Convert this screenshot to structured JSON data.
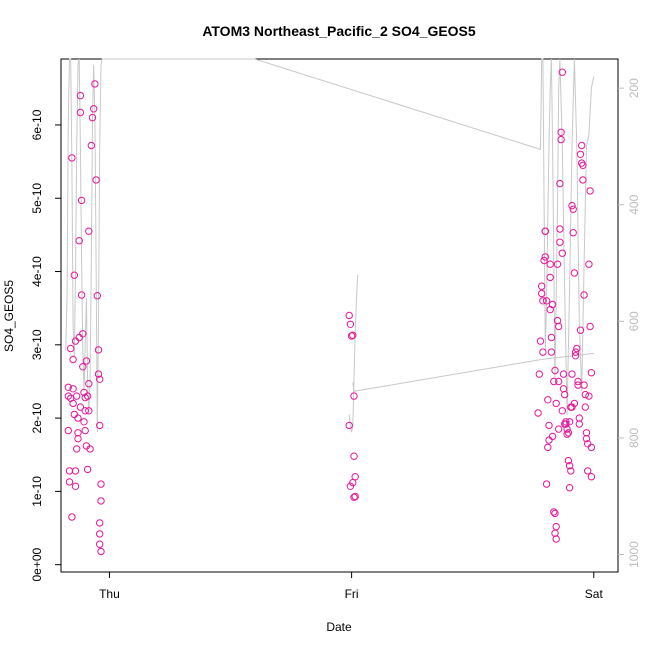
{
  "chart_data": {
    "type": "scatter",
    "title": "ATOM3 Northeast_Pacific_2 SO4_GEOS5",
    "xlabel": "Date",
    "ylabel": "SO4_GEOS5",
    "x_ticks": [
      {
        "label": "Thu",
        "value": 0
      },
      {
        "label": "Fri",
        "value": 1
      },
      {
        "label": "Sat",
        "value": 2
      }
    ],
    "y_ticks": [
      {
        "label": "0e+00",
        "value": 0
      },
      {
        "label": "1e-10",
        "value": 1e-10
      },
      {
        "label": "2e-10",
        "value": 2e-10
      },
      {
        "label": "3e-10",
        "value": 3e-10
      },
      {
        "label": "4e-10",
        "value": 4e-10
      },
      {
        "label": "5e-10",
        "value": 5e-10
      },
      {
        "label": "6e-10",
        "value": 6e-10
      }
    ],
    "right_axis": {
      "reversed": true,
      "ticks": [
        {
          "label": "200",
          "value": 200
        },
        {
          "label": "400",
          "value": 400
        },
        {
          "label": "600",
          "value": 600
        },
        {
          "label": "800",
          "value": 800
        },
        {
          "label": "1000",
          "value": 1000
        }
      ],
      "color": "#bdbdbd"
    },
    "xlim": [
      -0.2,
      2.1
    ],
    "ylim": [
      -1e-11,
      6.9e-10
    ],
    "right_ylim": [
      1030,
      150
    ],
    "point_color": "#e6179c",
    "line_color": "#c8c8c8",
    "series": [
      {
        "kind": "points",
        "points": [
          [
            -0.17,
            2.42e-10
          ],
          [
            -0.17,
            2.3e-10
          ],
          [
            -0.17,
            1.83e-10
          ],
          [
            -0.165,
            1.28e-10
          ],
          [
            -0.165,
            1.13e-10
          ],
          [
            -0.16,
            2.27e-10
          ],
          [
            -0.155,
            6.5e-11
          ],
          [
            -0.155,
            5.55e-10
          ],
          [
            -0.15,
            2.8e-10
          ],
          [
            -0.15,
            2.4e-10
          ],
          [
            -0.145,
            3.95e-10
          ],
          [
            -0.145,
            2.05e-10
          ],
          [
            -0.14,
            1.28e-10
          ],
          [
            -0.14,
            1.07e-10
          ],
          [
            -0.135,
            2.3e-10
          ],
          [
            -0.13,
            1.8e-10
          ],
          [
            -0.13,
            1.72e-10
          ],
          [
            -0.125,
            4.42e-10
          ],
          [
            -0.125,
            3.1e-10
          ],
          [
            -0.12,
            6.4e-10
          ],
          [
            -0.12,
            6.17e-10
          ],
          [
            -0.115,
            4.97e-10
          ],
          [
            -0.115,
            3.68e-10
          ],
          [
            -0.11,
            3.15e-10
          ],
          [
            -0.11,
            2.7e-10
          ],
          [
            -0.105,
            2.35e-10
          ],
          [
            -0.1,
            2.28e-10
          ],
          [
            -0.1,
            1.83e-10
          ],
          [
            -0.095,
            2.78e-10
          ],
          [
            -0.095,
            1.62e-10
          ],
          [
            -0.09,
            1.3e-10
          ],
          [
            -0.09,
            2.3e-10
          ],
          [
            -0.085,
            4.55e-10
          ],
          [
            -0.085,
            2.47e-10
          ],
          [
            -0.08,
            1.58e-10
          ],
          [
            -0.075,
            5.72e-10
          ],
          [
            -0.07,
            6.1e-10
          ],
          [
            -0.065,
            6.22e-10
          ],
          [
            -0.06,
            6.56e-10
          ],
          [
            -0.055,
            5.25e-10
          ],
          [
            -0.05,
            3.67e-10
          ],
          [
            -0.045,
            2.93e-10
          ],
          [
            -0.045,
            2.6e-10
          ],
          [
            -0.04,
            1.9e-10
          ],
          [
            -0.04,
            2.53e-10
          ],
          [
            -0.035,
            1.1e-10
          ],
          [
            -0.035,
            8.7e-11
          ],
          [
            -0.04,
            5.7e-11
          ],
          [
            -0.04,
            4.2e-11
          ],
          [
            -0.04,
            2.8e-11
          ],
          [
            -0.035,
            1.8e-11
          ],
          [
            -0.16,
            2.95e-10
          ],
          [
            -0.14,
            3.05e-10
          ],
          [
            -0.15,
            2.2e-10
          ],
          [
            -0.105,
            1.95e-10
          ],
          [
            -0.1,
            2.1e-10
          ],
          [
            -0.085,
            2.1e-10
          ],
          [
            -0.13,
            2e-10
          ],
          [
            -0.135,
            1.58e-10
          ],
          [
            -0.12,
            2.15e-10
          ],
          [
            0.99,
            3.4e-10
          ],
          [
            0.995,
            3.28e-10
          ],
          [
            1.0,
            3.12e-10
          ],
          [
            1.005,
            3.13e-10
          ],
          [
            0.99,
            1.9e-10
          ],
          [
            1.01,
            2.3e-10
          ],
          [
            0.995,
            1.07e-10
          ],
          [
            1.005,
            1.12e-10
          ],
          [
            1.015,
            1.2e-10
          ],
          [
            1.01,
            1.48e-10
          ],
          [
            1.01,
            9.2e-11
          ],
          [
            1.015,
            9.3e-11
          ],
          [
            1.77,
            2.07e-10
          ],
          [
            1.775,
            2.6e-10
          ],
          [
            1.78,
            3.05e-10
          ],
          [
            1.785,
            3.8e-10
          ],
          [
            1.785,
            3.7e-10
          ],
          [
            1.79,
            3.6e-10
          ],
          [
            1.79,
            2.9e-10
          ],
          [
            1.795,
            4.15e-10
          ],
          [
            1.8,
            4.55e-10
          ],
          [
            1.8,
            4.2e-10
          ],
          [
            1.8,
            4.55e-10
          ],
          [
            1.805,
            3.6e-10
          ],
          [
            1.805,
            1.1e-10
          ],
          [
            1.81,
            2.25e-10
          ],
          [
            1.81,
            1.6e-10
          ],
          [
            1.815,
            1.7e-10
          ],
          [
            1.815,
            1.9e-10
          ],
          [
            1.82,
            4.1e-10
          ],
          [
            1.82,
            3.92e-10
          ],
          [
            1.82,
            3.48e-10
          ],
          [
            1.825,
            3.1e-10
          ],
          [
            1.825,
            2.9e-10
          ],
          [
            1.83,
            3.55e-10
          ],
          [
            1.83,
            1.75e-10
          ],
          [
            1.835,
            2.5e-10
          ],
          [
            1.835,
            7.2e-11
          ],
          [
            1.84,
            7e-11
          ],
          [
            1.84,
            4.3e-11
          ],
          [
            1.845,
            3.5e-11
          ],
          [
            1.845,
            5.2e-11
          ],
          [
            1.85,
            4.1e-10
          ],
          [
            1.85,
            3.33e-10
          ],
          [
            1.855,
            3.25e-10
          ],
          [
            1.855,
            1.85e-10
          ],
          [
            1.86,
            4.58e-10
          ],
          [
            1.86,
            4.4e-10
          ],
          [
            1.86,
            5.2e-10
          ],
          [
            1.865,
            5.9e-10
          ],
          [
            1.865,
            5.8e-10
          ],
          [
            1.87,
            6.72e-10
          ],
          [
            1.87,
            4.25e-10
          ],
          [
            1.875,
            2.6e-10
          ],
          [
            1.875,
            2.4e-10
          ],
          [
            1.88,
            2.32e-10
          ],
          [
            1.885,
            1.95e-10
          ],
          [
            1.885,
            1.92e-10
          ],
          [
            1.89,
            1.85e-10
          ],
          [
            1.895,
            1.8e-10
          ],
          [
            1.895,
            1.42e-10
          ],
          [
            1.9,
            1.35e-10
          ],
          [
            1.9,
            1.05e-10
          ],
          [
            1.905,
            1.28e-10
          ],
          [
            1.905,
            2.15e-10
          ],
          [
            1.91,
            2.6e-10
          ],
          [
            1.91,
            4.9e-10
          ],
          [
            1.915,
            4.53e-10
          ],
          [
            1.915,
            4.85e-10
          ],
          [
            1.92,
            3.98e-10
          ],
          [
            1.92,
            2.2e-10
          ],
          [
            1.925,
            2.85e-10
          ],
          [
            1.925,
            2.9e-10
          ],
          [
            1.93,
            2.95e-10
          ],
          [
            1.935,
            2.45e-10
          ],
          [
            1.935,
            2.5e-10
          ],
          [
            1.94,
            2e-10
          ],
          [
            1.94,
            1.92e-10
          ],
          [
            1.945,
            3.2e-10
          ],
          [
            1.945,
            5.6e-10
          ],
          [
            1.95,
            5.72e-10
          ],
          [
            1.95,
            5.48e-10
          ],
          [
            1.955,
            5.45e-10
          ],
          [
            1.955,
            5.25e-10
          ],
          [
            1.96,
            3.68e-10
          ],
          [
            1.96,
            2.45e-10
          ],
          [
            1.965,
            2.32e-10
          ],
          [
            1.965,
            2.15e-10
          ],
          [
            1.97,
            1.8e-10
          ],
          [
            1.97,
            1.72e-10
          ],
          [
            1.975,
            1.65e-10
          ],
          [
            1.975,
            1.28e-10
          ],
          [
            1.98,
            2.3e-10
          ],
          [
            1.98,
            4.1e-10
          ],
          [
            1.985,
            3.25e-10
          ],
          [
            1.985,
            5.1e-10
          ],
          [
            1.99,
            2.62e-10
          ],
          [
            1.99,
            1.6e-10
          ],
          [
            1.99,
            1.2e-10
          ],
          [
            1.84,
            2.65e-10
          ],
          [
            1.845,
            2.2e-10
          ],
          [
            1.855,
            2.5e-10
          ],
          [
            1.87,
            2.1e-10
          ],
          [
            1.88,
            1.92e-10
          ],
          [
            1.89,
            1.78e-10
          ],
          [
            1.9,
            1.95e-10
          ],
          [
            1.91,
            2.15e-10
          ]
        ]
      },
      {
        "kind": "right_axis_line",
        "points": [
          [
            -0.18,
            650
          ],
          [
            -0.175,
            550
          ],
          [
            -0.17,
            250
          ],
          [
            -0.165,
            150
          ],
          [
            -0.16,
            150
          ],
          [
            -0.155,
            330
          ],
          [
            -0.15,
            610
          ],
          [
            -0.145,
            660
          ],
          [
            -0.14,
            520
          ],
          [
            -0.135,
            300
          ],
          [
            -0.13,
            160
          ],
          [
            -0.125,
            150
          ],
          [
            -0.12,
            300
          ],
          [
            -0.115,
            500
          ],
          [
            -0.11,
            650
          ],
          [
            -0.105,
            720
          ],
          [
            -0.1,
            640
          ],
          [
            -0.095,
            560
          ],
          [
            -0.09,
            700
          ],
          [
            -0.085,
            760
          ],
          [
            -0.08,
            700
          ],
          [
            -0.075,
            500
          ],
          [
            -0.07,
            250
          ],
          [
            -0.065,
            160
          ],
          [
            -0.06,
            250
          ],
          [
            -0.055,
            500
          ],
          [
            -0.05,
            790
          ],
          [
            -0.045,
            600
          ],
          [
            -0.04,
            300
          ],
          [
            -0.035,
            160
          ],
          [
            -0.03,
            150
          ],
          [
            0.6,
            150
          ],
          [
            1.78,
            305
          ],
          [
            1.785,
            150
          ],
          [
            1.79,
            150
          ],
          [
            1.795,
            400
          ],
          [
            1.8,
            650
          ],
          [
            1.805,
            560
          ],
          [
            1.81,
            420
          ],
          [
            1.815,
            300
          ],
          [
            1.82,
            200
          ],
          [
            1.825,
            150
          ],
          [
            1.83,
            300
          ],
          [
            1.835,
            500
          ],
          [
            1.84,
            700
          ],
          [
            1.845,
            560
          ],
          [
            1.85,
            400
          ],
          [
            1.855,
            200
          ],
          [
            1.86,
            150
          ],
          [
            1.87,
            300
          ],
          [
            1.88,
            550
          ],
          [
            1.89,
            760
          ],
          [
            1.9,
            540
          ],
          [
            1.91,
            300
          ],
          [
            1.92,
            150
          ],
          [
            1.93,
            300
          ],
          [
            1.94,
            600
          ],
          [
            1.95,
            720
          ],
          [
            1.96,
            500
          ],
          [
            1.97,
            300
          ],
          [
            1.98,
            280
          ],
          [
            1.99,
            200
          ],
          [
            2.0,
            180
          ]
        ]
      },
      {
        "kind": "right_axis_line",
        "points": [
          [
            0.99,
            760
          ],
          [
            0.995,
            780
          ],
          [
            1.0,
            790
          ],
          [
            1.005,
            780
          ],
          [
            1.01,
            700
          ],
          [
            1.015,
            620
          ],
          [
            1.02,
            560
          ],
          [
            1.025,
            520
          ]
        ]
      },
      {
        "kind": "right_axis_line",
        "points": [
          [
            1.005,
            705
          ],
          [
            1.01,
            720
          ],
          [
            1.79,
            665
          ],
          [
            2.0,
            655
          ]
        ]
      }
    ]
  }
}
